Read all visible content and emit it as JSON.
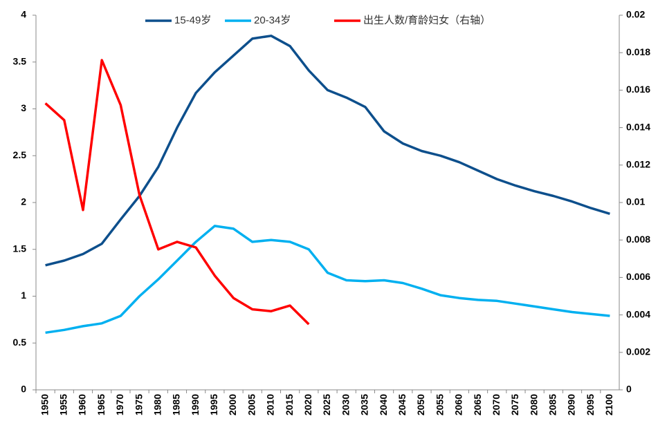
{
  "chart_data": {
    "type": "line",
    "categories": [
      "1950",
      "1955",
      "1960",
      "1965",
      "1970",
      "1975",
      "1980",
      "1985",
      "1990",
      "1995",
      "2000",
      "2005",
      "2010",
      "2015",
      "2020",
      "2025",
      "2030",
      "2035",
      "2040",
      "2045",
      "2050",
      "2055",
      "2060",
      "2065",
      "2070",
      "2075",
      "2080",
      "2085",
      "2090",
      "2095",
      "2100"
    ],
    "series": [
      {
        "name": "15-49岁",
        "color": "#0d4f8c",
        "values": [
          1.33,
          1.38,
          1.45,
          1.56,
          1.82,
          2.07,
          2.38,
          2.8,
          3.17,
          3.39,
          3.57,
          3.75,
          3.78,
          3.67,
          3.41,
          3.2,
          3.12,
          3.02,
          2.76,
          2.63,
          2.55,
          2.5,
          2.43,
          2.34,
          2.25,
          2.18,
          2.12,
          2.07,
          2.01,
          1.94,
          1.88
        ]
      },
      {
        "name": "20-34岁",
        "color": "#00b0f0",
        "values": [
          0.61,
          0.64,
          0.68,
          0.71,
          0.79,
          1.0,
          1.18,
          1.38,
          1.58,
          1.75,
          1.72,
          1.58,
          1.6,
          1.58,
          1.5,
          1.25,
          1.17,
          1.16,
          1.17,
          1.14,
          1.08,
          1.01,
          0.98,
          0.96,
          0.95,
          0.92,
          0.89,
          0.86,
          0.83,
          0.81,
          0.79
        ]
      },
      {
        "name": "出生人数/育龄妇女（右轴）",
        "color": "#ff0000",
        "axis": "y2",
        "values": [
          0.0153,
          0.0144,
          0.0096,
          0.0176,
          0.0152,
          0.0104,
          0.0075,
          0.0079,
          0.0076,
          0.0061,
          0.0049,
          0.0043,
          0.0042,
          0.0045,
          0.0035,
          null,
          null,
          null,
          null,
          null,
          null,
          null,
          null,
          null,
          null,
          null,
          null,
          null,
          null,
          null,
          null
        ]
      }
    ],
    "ylim": [
      0,
      4
    ],
    "yticks": [
      0,
      0.5,
      1,
      1.5,
      2,
      2.5,
      3,
      3.5,
      4
    ],
    "y2lim": [
      0,
      0.02
    ],
    "y2ticks": [
      0,
      0.002,
      0.004,
      0.006,
      0.008,
      0.01,
      0.012,
      0.014,
      0.016,
      0.018,
      0.02
    ],
    "legend": "top"
  }
}
